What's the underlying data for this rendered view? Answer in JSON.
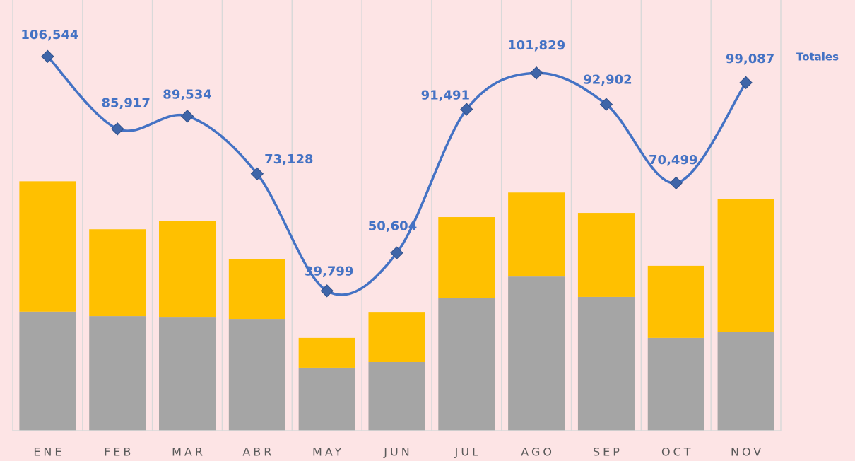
{
  "chart_data": {
    "type": "stacked-bar-line",
    "categories": [
      "ENE",
      "FEB",
      "MAR",
      "ABR",
      "MAY",
      "JUN",
      "JUL",
      "AGO",
      "SEP",
      "OCT",
      "NOV"
    ],
    "ylim": [
      0,
      180000
    ],
    "y2lim": [
      0,
      120000
    ],
    "series": [
      {
        "color": "#a5a5a5",
        "values": [
          50800,
          48900,
          48300,
          47700,
          26900,
          29300,
          56500,
          65800,
          57100,
          39600,
          42000
        ]
      },
      {
        "color": "#ffc000",
        "values": [
          55700,
          37100,
          41300,
          25600,
          12700,
          21400,
          34700,
          35900,
          35900,
          30800,
          56800
        ]
      },
      {
        "name": "Totales",
        "color": "#4472c4",
        "axis": "y2",
        "smooth": true,
        "values": [
          106544,
          85917,
          89534,
          73128,
          39799,
          50604,
          91491,
          101829,
          92902,
          70499,
          99087
        ],
        "value_labels": [
          "106,544",
          "85,917",
          "89,534",
          "73,128",
          "39,799",
          "50,604",
          "91,491",
          "101,829",
          "92,902",
          "70,499",
          "99,087"
        ]
      }
    ]
  }
}
